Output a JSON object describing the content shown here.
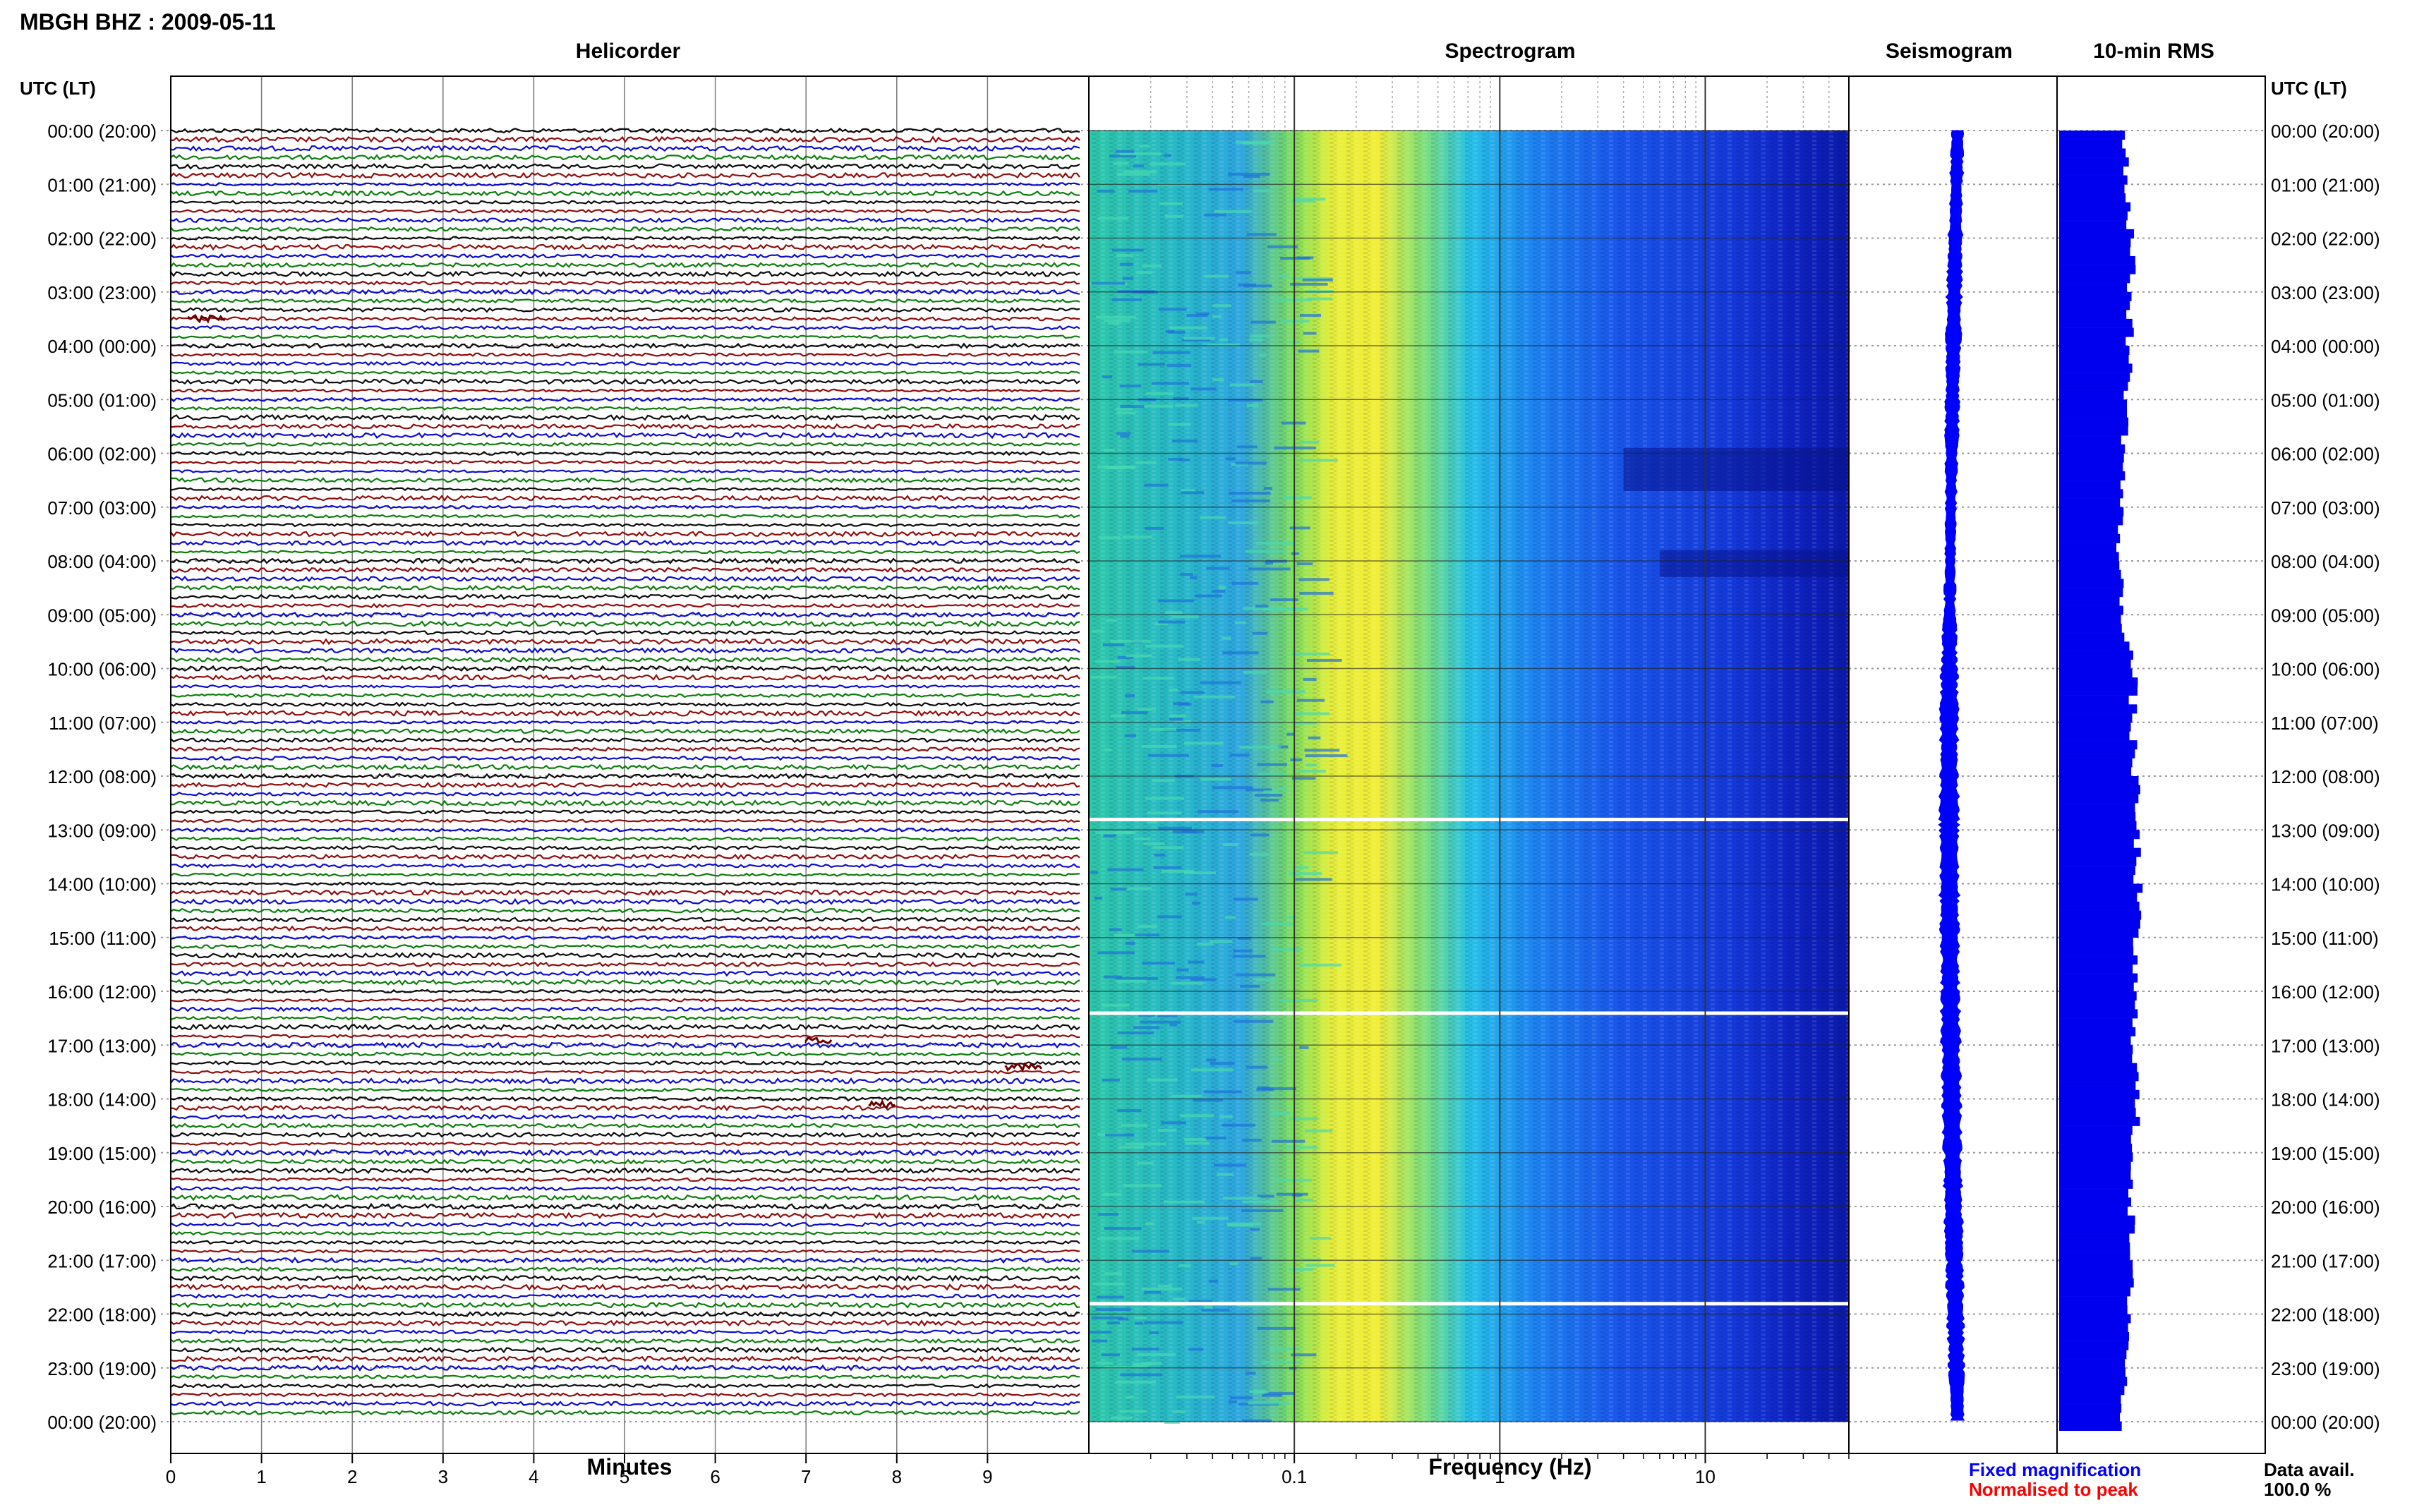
{
  "header": {
    "title": "MBGH BHZ : 2009-05-11",
    "panel_titles": [
      "Helicorder",
      "Spectrogram",
      "Seismogram",
      "10-min RMS"
    ],
    "left_axis_label": "UTC (LT)",
    "right_axis_label": "UTC (LT)"
  },
  "time_labels": [
    "00:00 (20:00)",
    "01:00 (21:00)",
    "02:00 (22:00)",
    "03:00 (23:00)",
    "04:00 (00:00)",
    "05:00 (01:00)",
    "06:00 (02:00)",
    "07:00 (03:00)",
    "08:00 (04:00)",
    "09:00 (05:00)",
    "10:00 (06:00)",
    "11:00 (07:00)",
    "12:00 (08:00)",
    "13:00 (09:00)",
    "14:00 (10:00)",
    "15:00 (11:00)",
    "16:00 (12:00)",
    "17:00 (13:00)",
    "18:00 (14:00)",
    "19:00 (15:00)",
    "20:00 (16:00)",
    "21:00 (17:00)",
    "22:00 (18:00)",
    "23:00 (19:00)",
    "00:00 (20:00)"
  ],
  "footer": {
    "minutes_label": "Minutes",
    "frequency_label": "Frequency (Hz)",
    "legend_fixed": "Fixed magnification",
    "legend_normalised": "Normalised to peak",
    "data_avail_label": "Data avail.",
    "data_avail_value": "100.0 %"
  },
  "colors": {
    "fixed": "#0000ff",
    "normalised": "#ff0000",
    "trace_cycle": [
      "#000000",
      "#8b0000",
      "#0000cc",
      "#007700"
    ],
    "rms_fill": "#0000ee",
    "seismogram": "#0000ff"
  },
  "chart_data": [
    {
      "type": "line",
      "name": "Helicorder",
      "xlabel": "Minutes",
      "x_ticks": [
        0,
        1,
        2,
        3,
        4,
        5,
        6,
        7,
        8,
        9
      ],
      "xlim": [
        0,
        10
      ],
      "ylim_hours": [
        0,
        24
      ],
      "traces_per_hour": 6,
      "trace_count": 144,
      "events": [
        {
          "hour": 3.5,
          "minute": 0.2,
          "duration_min": 0.4
        },
        {
          "hour": 16.9,
          "minute": 7.0,
          "duration_min": 0.3
        },
        {
          "hour": 17.4,
          "minute": 9.2,
          "duration_min": 0.4
        },
        {
          "hour": 18.1,
          "minute": 7.7,
          "duration_min": 0.3
        }
      ]
    },
    {
      "type": "heatmap",
      "name": "Spectrogram",
      "xlabel": "Frequency (Hz)",
      "x_scale": "log",
      "x_tick_labels": [
        "0.1",
        "1",
        "10"
      ],
      "x_major_ticks": [
        0.1,
        1,
        10
      ],
      "xlim": [
        0.01,
        50
      ],
      "ylim_hours": [
        0,
        24
      ],
      "peak_band_hz": [
        0.2,
        0.6
      ],
      "white_gaps_hours": [
        12.8,
        16.4,
        21.8
      ],
      "quiet_zones": [
        {
          "hours": [
            5.9,
            6.7
          ],
          "freq_hz": [
            4,
            50
          ]
        },
        {
          "hours": [
            7.8,
            8.3
          ],
          "freq_hz": [
            6,
            50
          ]
        }
      ]
    },
    {
      "type": "area",
      "name": "Seismogram",
      "ylim_hours": [
        0,
        24
      ],
      "note_hours": [
        0,
        1,
        2,
        3,
        4,
        5,
        6,
        7,
        8,
        9,
        10,
        11,
        12,
        13,
        14,
        15,
        16,
        17,
        18,
        19,
        20,
        21,
        22,
        23,
        24
      ],
      "amplitude": [
        0.45,
        0.42,
        0.47,
        0.5,
        0.5,
        0.48,
        0.42,
        0.35,
        0.33,
        0.4,
        0.55,
        0.6,
        0.62,
        0.63,
        0.64,
        0.62,
        0.6,
        0.63,
        0.64,
        0.62,
        0.6,
        0.55,
        0.55,
        0.5,
        0.45
      ]
    },
    {
      "type": "bar",
      "name": "10-min RMS",
      "ylim_hours": [
        0,
        24
      ],
      "hours": [
        0,
        1,
        2,
        3,
        4,
        5,
        6,
        7,
        8,
        9,
        10,
        11,
        12,
        13,
        14,
        15,
        16,
        17,
        18,
        19,
        20,
        21,
        22,
        23,
        24
      ],
      "rms": [
        0.8,
        0.82,
        0.88,
        0.86,
        0.85,
        0.82,
        0.78,
        0.74,
        0.72,
        0.78,
        0.9,
        0.88,
        0.92,
        0.93,
        0.95,
        0.92,
        0.9,
        0.92,
        0.93,
        0.9,
        0.87,
        0.85,
        0.86,
        0.8,
        0.75
      ]
    }
  ]
}
